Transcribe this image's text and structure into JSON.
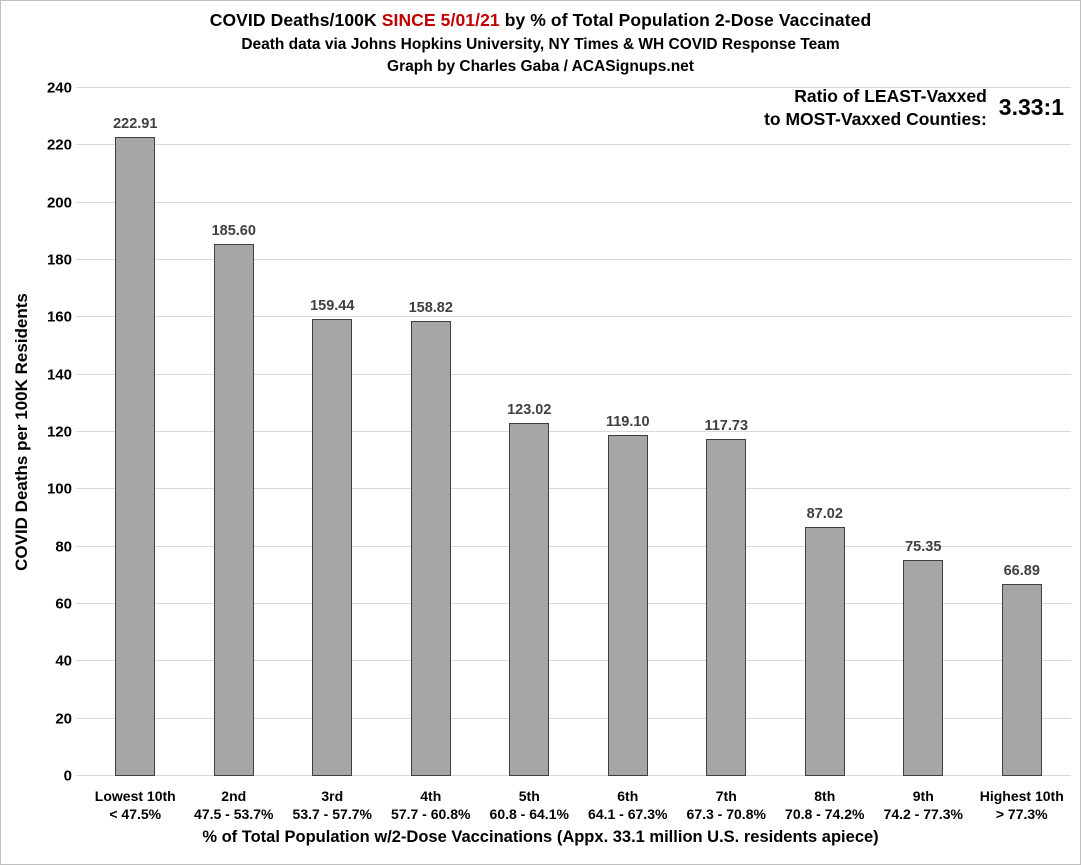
{
  "title": {
    "part1": "COVID Deaths/100K ",
    "highlight": "SINCE 5/01/21",
    "part2": " by % of Total Population 2-Dose Vaccinated",
    "highlight_color": "#c00000",
    "subtitle_source": "Death data via Johns Hopkins University, NY Times & WH COVID Response Team",
    "subtitle_credit": "Graph by Charles Gaba / ACASignups.net"
  },
  "annotation": {
    "line1": "Ratio of LEAST-Vaxxed",
    "line2": "to MOST-Vaxxed Counties:",
    "value": "3.33:1"
  },
  "chart_data": {
    "type": "bar",
    "title": "COVID Deaths/100K SINCE 5/01/21 by % of Total Population 2-Dose Vaccinated",
    "subtitle": "Death data via Johns Hopkins University, NY Times & WH COVID Response Team — Graph by Charles Gaba / ACASignups.net",
    "categories": [
      "Lowest 10th",
      "2nd",
      "3rd",
      "4th",
      "5th",
      "6th",
      "7th",
      "8th",
      "9th",
      "Highest 10th"
    ],
    "category_ranges": [
      "< 47.5%",
      "47.5 - 53.7%",
      "53.7 - 57.7%",
      "57.7 - 60.8%",
      "60.8 - 64.1%",
      "64.1 - 67.3%",
      "67.3 - 70.8%",
      "70.8 - 74.2%",
      "74.2 - 77.3%",
      "> 77.3%"
    ],
    "values": [
      222.91,
      185.6,
      159.44,
      158.82,
      123.02,
      119.1,
      117.73,
      87.02,
      75.35,
      66.89
    ],
    "value_label_decimals": 2,
    "xlabel": "% of Total Population w/2-Dose Vaccinations (Appx. 33.1 million U.S. residents apiece)",
    "ylabel": "COVID Deaths per 100K Residents",
    "ylim": [
      0,
      240
    ],
    "ytick_interval": 20,
    "grid": true,
    "legend_position": "none",
    "annotation_value": "3.33:1",
    "bar_color": "#a6a6a6",
    "bar_border_color": "#3f3f3f",
    "value_label_color": "#404040",
    "gridline_color": "#d9d9d9"
  }
}
